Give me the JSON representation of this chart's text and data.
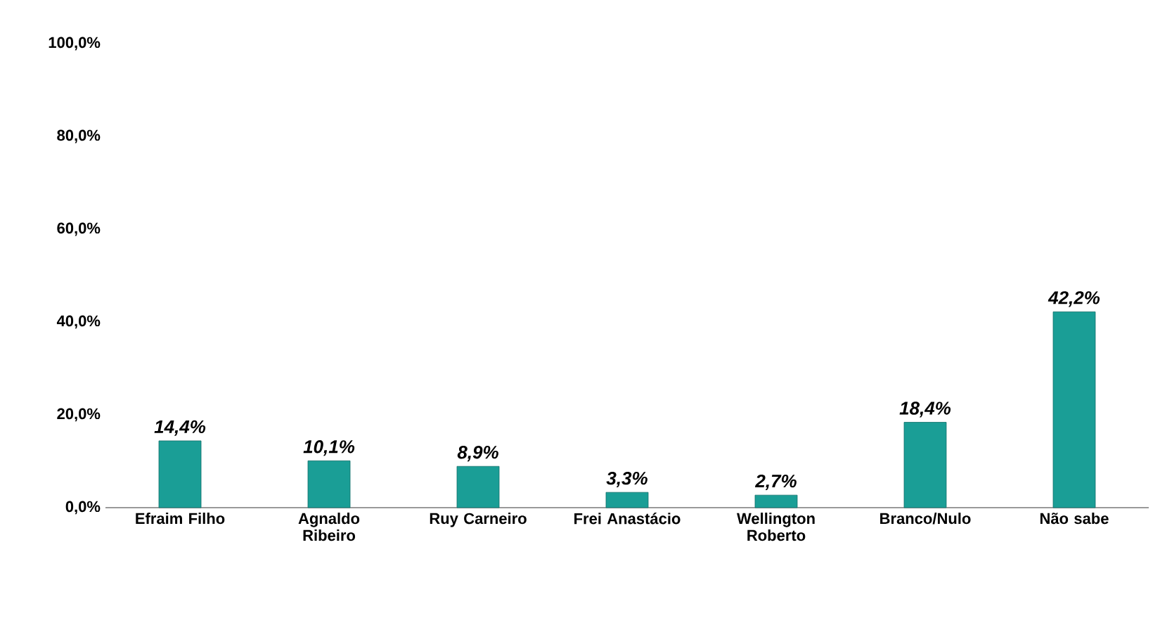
{
  "chart_data": {
    "type": "bar",
    "categories": [
      "Efraim Filho",
      "Agnaldo Ribeiro",
      "Ruy Carneiro",
      "Frei Anastácio",
      "Wellington Roberto",
      "Branco/Nulo",
      "Não sabe"
    ],
    "values": [
      14.4,
      10.1,
      8.9,
      3.3,
      2.7,
      18.4,
      42.2
    ],
    "value_labels": [
      "14,4%",
      "10,1%",
      "8,9%",
      "3,3%",
      "2,7%",
      "18,4%",
      "42,2%"
    ],
    "color": "#1a9e96",
    "ylim": [
      0,
      100
    ],
    "yticks": [
      {
        "value": 0,
        "label": "0,0%"
      },
      {
        "value": 20,
        "label": "20,0%"
      },
      {
        "value": 40,
        "label": "40,0%"
      },
      {
        "value": 60,
        "label": "60,0%"
      },
      {
        "value": 80,
        "label": "80,0%"
      },
      {
        "value": 100,
        "label": "100,0%"
      }
    ],
    "grid": false
  }
}
